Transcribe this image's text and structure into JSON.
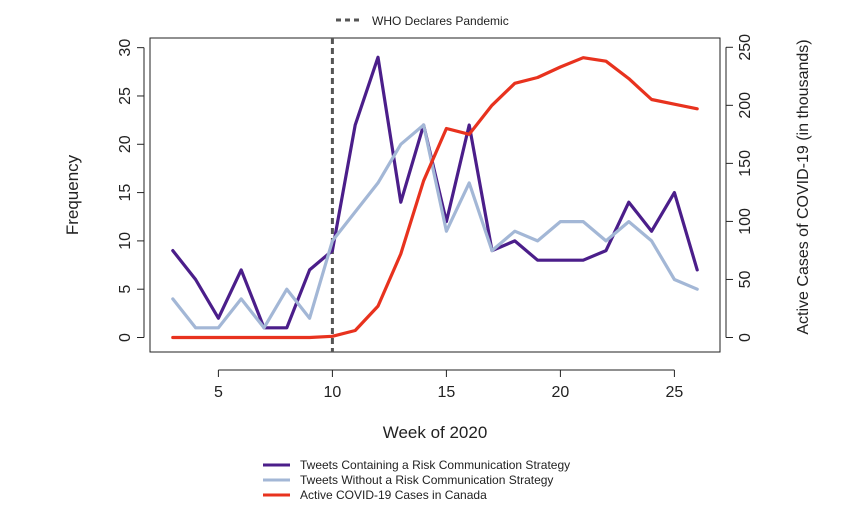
{
  "chart_data": {
    "type": "line",
    "xlabel": "Week of 2020",
    "ylabel": "Frequency",
    "y2label": "Active Cases of COVID-19 (in thousands)",
    "xlim": [
      2,
      27
    ],
    "ylim": [
      -1.5,
      31
    ],
    "y2lim": [
      -12.5,
      258
    ],
    "xticks": [
      5,
      10,
      15,
      20,
      25
    ],
    "yticks": [
      0,
      5,
      10,
      15,
      20,
      25,
      30
    ],
    "y2ticks": [
      0,
      50,
      100,
      150,
      200,
      250
    ],
    "grid": false,
    "legend_position": "bottom",
    "annotation": {
      "label": "WHO Declares Pandemic",
      "x": 10,
      "color": "#555555",
      "style": "dashed"
    },
    "series": [
      {
        "name": "Tweets Containing a Risk Communication Strategy",
        "color": "#4B1E8A",
        "axis": "left",
        "x": [
          3,
          4,
          5,
          6,
          7,
          8,
          9,
          10,
          11,
          12,
          13,
          14,
          15,
          16,
          17,
          18,
          19,
          20,
          21,
          22,
          23,
          24,
          25,
          26
        ],
        "y": [
          9,
          6,
          2,
          7,
          1,
          1,
          7,
          9,
          22,
          29,
          14,
          22,
          12,
          22,
          9,
          10,
          8,
          8,
          8,
          9,
          14,
          11,
          15,
          7
        ]
      },
      {
        "name": "Tweets Without a Risk Communication Strategy",
        "color": "#A3B7D6",
        "axis": "left",
        "x": [
          3,
          4,
          5,
          6,
          7,
          8,
          9,
          10,
          11,
          12,
          13,
          14,
          15,
          16,
          17,
          18,
          19,
          20,
          21,
          22,
          23,
          24,
          25,
          26
        ],
        "y": [
          4,
          1,
          1,
          4,
          1,
          5,
          2,
          10,
          13,
          16,
          20,
          22,
          11,
          16,
          9,
          11,
          10,
          12,
          12,
          10,
          12,
          10,
          6,
          5
        ]
      },
      {
        "name": "Active COVID-19 Cases in Canada",
        "color": "#E8321E",
        "axis": "right",
        "x": [
          3,
          4,
          5,
          6,
          7,
          8,
          9,
          10,
          11,
          12,
          13,
          14,
          15,
          16,
          17,
          18,
          19,
          20,
          21,
          22,
          23,
          24,
          25,
          26
        ],
        "y": [
          0,
          0,
          0,
          0,
          0,
          0,
          0,
          1,
          6,
          27,
          72,
          135,
          180,
          175,
          200,
          219,
          224,
          233,
          241,
          238,
          223,
          205,
          201,
          197
        ]
      }
    ]
  }
}
